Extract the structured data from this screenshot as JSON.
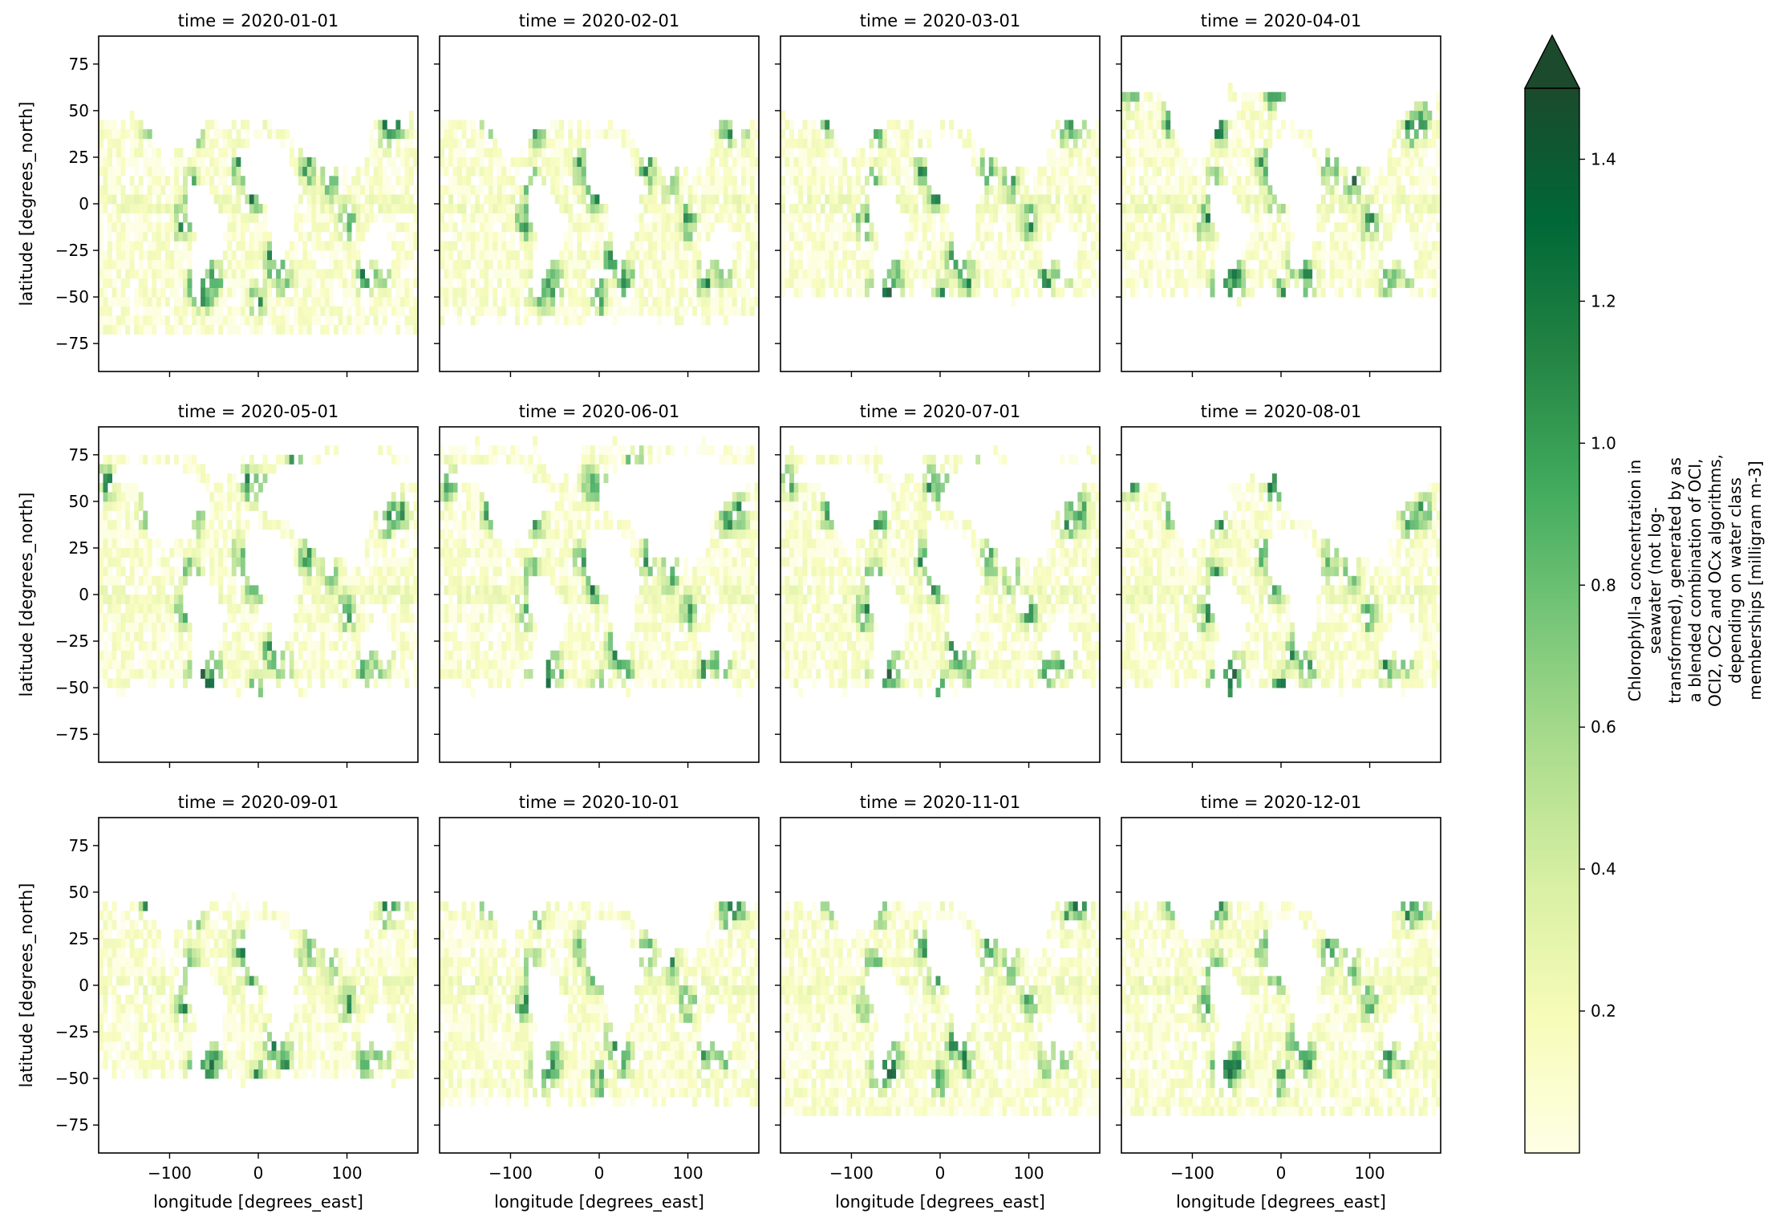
{
  "chart_data": {
    "type": "heatmap",
    "variable": "Chlorophyll-a concentration",
    "colormap": "YlGn",
    "color_range": [
      0.0,
      1.5
    ],
    "colorbar_extend": "max",
    "xlabel": "longitude [degrees_east]",
    "ylabel": "latitude [degrees_north]",
    "xlim": [
      -180,
      180
    ],
    "ylim": [
      -90,
      90
    ],
    "x_ticks": [
      -100,
      0,
      100
    ],
    "y_ticks": [
      75,
      50,
      25,
      0,
      -25,
      -50,
      -75
    ],
    "x_tick_labels": [
      "−100",
      "0",
      "100"
    ],
    "y_tick_labels": [
      "75",
      "50",
      "25",
      "0",
      "−25",
      "−50",
      "−75"
    ],
    "colorbar_ticks": [
      0.2,
      0.4,
      0.6,
      0.8,
      1.0,
      1.2,
      1.4
    ],
    "colorbar_tick_labels": [
      "0.2",
      "0.4",
      "0.6",
      "0.8",
      "1.0",
      "1.2",
      "1.4"
    ],
    "colorbar_label": [
      "Chlorophyll-a concentration in",
      "seawater (not log-",
      "transformed), generated by as",
      "a blended combination of OCI,",
      "OCI2, OC2 and OCx algorithms,",
      "depending on water class",
      "memberships [milligram m-3]"
    ],
    "panels": [
      {
        "title": "time = 2020-01-01"
      },
      {
        "title": "time = 2020-02-01"
      },
      {
        "title": "time = 2020-03-01"
      },
      {
        "title": "time = 2020-04-01"
      },
      {
        "title": "time = 2020-05-01"
      },
      {
        "title": "time = 2020-06-01"
      },
      {
        "title": "time = 2020-07-01"
      },
      {
        "title": "time = 2020-08-01"
      },
      {
        "title": "time = 2020-09-01"
      },
      {
        "title": "time = 2020-10-01"
      },
      {
        "title": "time = 2020-11-01"
      },
      {
        "title": "time = 2020-12-01"
      }
    ],
    "colors": {
      "low": "#ffffe5",
      "mid": "#addd8e",
      "high": "#004529",
      "arrow": "#1b4a2c"
    }
  }
}
